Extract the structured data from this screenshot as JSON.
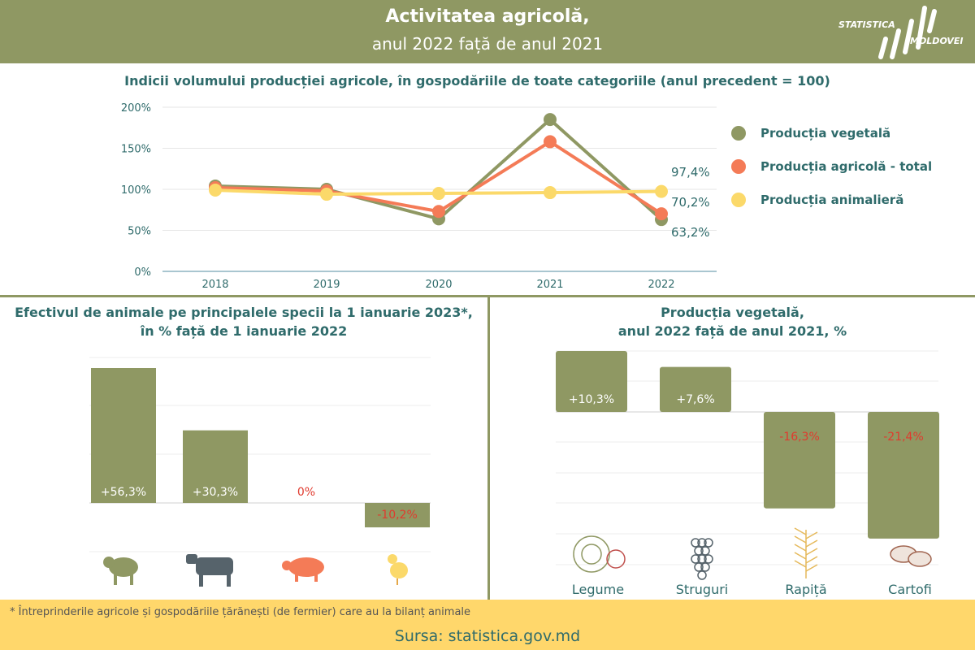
{
  "header": {
    "title_line1": "Activitatea agricolă,",
    "title_line2": "anul 2022 față de anul 2021",
    "logo_line1": "STATISTICA",
    "logo_line2": "MOLDOVEI"
  },
  "colors": {
    "header": "#8f9863",
    "vegetala": "#8f9863",
    "total": "#f47b57",
    "animaliera": "#fbd96a",
    "negative_label": "#e03a2e",
    "text": "#2f6b6b",
    "footer": "#ffd76b"
  },
  "chart_data": [
    {
      "type": "line",
      "title": "Indicii volumului producției agricole, în gospodăriile de toate categoriile (anul precedent = 100)",
      "x": [
        "2018",
        "2019",
        "2020",
        "2021",
        "2022"
      ],
      "y_ticks": [
        "200%",
        "150%",
        "100%",
        "50%",
        "0%"
      ],
      "ylim": [
        0,
        200
      ],
      "grid": true,
      "legend_position": "right",
      "series": [
        {
          "name": "Producția vegetală",
          "values": [
            104,
            100,
            64,
            185,
            63.2
          ],
          "color": "#8f9863"
        },
        {
          "name": "Producția agricolă - total",
          "values": [
            102,
            98,
            73,
            158,
            70.2
          ],
          "color": "#f47b57"
        },
        {
          "name": "Producția animalieră",
          "values": [
            99,
            94,
            95,
            96,
            97.4
          ],
          "color": "#fbd96a"
        }
      ],
      "end_labels": [
        "97,4%",
        "70,2%",
        "63,2%"
      ]
    },
    {
      "type": "bar",
      "title_line1": "Efectivul de animale pe principalele specii la 1 ianuarie 2023*,",
      "title_line2": "în % față de 1 ianuarie 2022",
      "categories": [
        "ovine",
        "bovine",
        "porcine",
        "păsări"
      ],
      "values": [
        56.3,
        30.3,
        0,
        -10.2
      ],
      "labels": [
        "+56,3%",
        "+30,3%",
        "0%",
        "-10,2%"
      ],
      "icons": [
        "sheep-icon",
        "cow-icon",
        "pig-icon",
        "chicken-icon"
      ],
      "ylim": [
        -20,
        70
      ]
    },
    {
      "type": "bar",
      "title_line1": "Producția vegetală,",
      "title_line2": "anul 2022 față de anul 2021, %",
      "categories": [
        "Legume",
        "Struguri",
        "Rapiță",
        "Cartofi"
      ],
      "values": [
        10.3,
        7.6,
        -16.3,
        -21.4
      ],
      "labels": [
        "+10,3%",
        "+7,6%",
        "-16,3%",
        "-21,4%"
      ],
      "icons": [
        "cabbage-icon",
        "grapes-icon",
        "rapeseed-icon",
        "potato-icon"
      ],
      "ylim": [
        -25,
        10
      ]
    }
  ],
  "footer": {
    "footnote": "* Întreprinderile agricole și gospodăriile țărănești (de fermier) care au la bilanț animale",
    "source": "Sursa: statistica.gov.md"
  }
}
